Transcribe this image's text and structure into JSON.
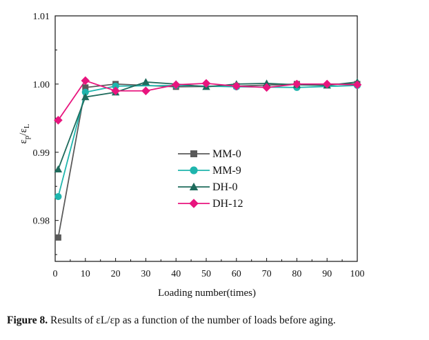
{
  "chart_data": {
    "type": "line",
    "title": "",
    "xlabel": "Loading number(times)",
    "ylabel": "εp/εL",
    "xlim": [
      0,
      100
    ],
    "ylim": [
      0.974,
      1.01
    ],
    "x_ticks": [
      0,
      10,
      20,
      30,
      40,
      50,
      60,
      70,
      80,
      90,
      100
    ],
    "y_ticks": [
      0.98,
      0.99,
      1.0,
      1.01
    ],
    "y_tick_labels": [
      "0.98",
      "0.99",
      "1.00",
      "1.01"
    ],
    "grid": false,
    "legend_position": "center",
    "series": [
      {
        "name": "MM-0",
        "color": "#5a5a5a",
        "marker": "square",
        "x": [
          1,
          10,
          20,
          40,
          60,
          80,
          100
        ],
        "y": [
          0.9775,
          0.9995,
          1.0,
          0.9996,
          0.9997,
          1.0,
          1.0
        ]
      },
      {
        "name": "MM-9",
        "color": "#1fb5ad",
        "marker": "circle",
        "x": [
          1,
          10,
          20,
          40,
          60,
          80,
          100
        ],
        "y": [
          0.9835,
          0.9988,
          0.9997,
          0.9998,
          0.9996,
          0.9995,
          0.9998
        ]
      },
      {
        "name": "DH-0",
        "color": "#1e6b5c",
        "marker": "triangle",
        "x": [
          1,
          10,
          20,
          30,
          40,
          50,
          60,
          70,
          80,
          90,
          100
        ],
        "y": [
          0.9875,
          0.9981,
          0.9988,
          1.0003,
          1.0,
          0.9996,
          1.0,
          1.0001,
          0.9999,
          0.9998,
          1.0003
        ]
      },
      {
        "name": "DH-12",
        "color": "#e8157e",
        "marker": "diamond",
        "x": [
          1,
          10,
          20,
          30,
          40,
          50,
          60,
          70,
          80,
          90,
          100
        ],
        "y": [
          0.9947,
          1.0005,
          0.999,
          0.999,
          0.9999,
          1.0001,
          0.9997,
          0.9995,
          1.0,
          1.0,
          0.9999
        ]
      }
    ]
  },
  "caption": {
    "label": "Figure 8.",
    "text": " Results of εL/εp as a function of the number of loads before aging."
  }
}
